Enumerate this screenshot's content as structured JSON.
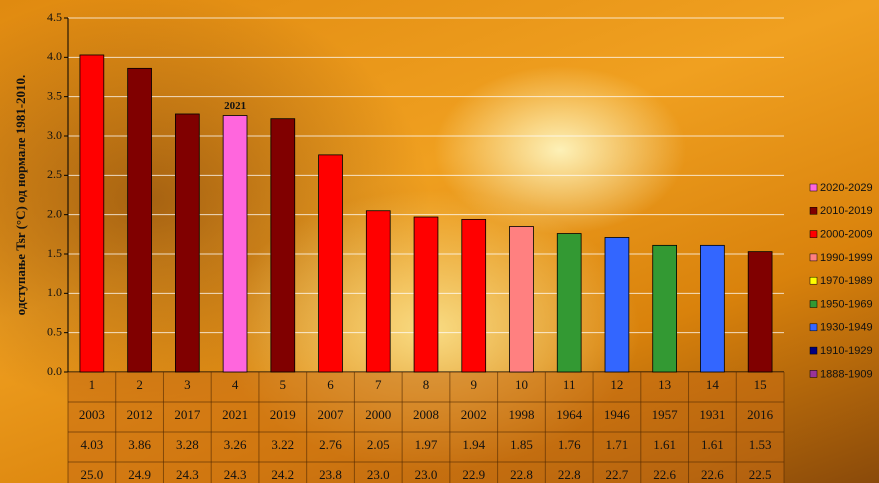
{
  "chart_data": {
    "type": "bar",
    "y_label": "одступање Tsr (°C) од нормале 1981-2010.",
    "categories": [
      "1",
      "2",
      "3",
      "4",
      "5",
      "6",
      "7",
      "8",
      "9",
      "10",
      "11",
      "12",
      "13",
      "14",
      "15"
    ],
    "years": [
      2003,
      2012,
      2017,
      2021,
      2019,
      2007,
      2000,
      2008,
      2002,
      1998,
      1964,
      1946,
      1957,
      1931,
      2016
    ],
    "values": [
      4.03,
      3.86,
      3.28,
      3.26,
      3.22,
      2.76,
      2.05,
      1.97,
      1.94,
      1.85,
      1.76,
      1.71,
      1.61,
      1.61,
      1.53
    ],
    "mean_temperatures": [
      "25.0",
      "24.9",
      "24.3",
      "24.3",
      "24.2",
      "23.8",
      "23.0",
      "23.0",
      "22.9",
      "22.8",
      "22.8",
      "22.7",
      "22.6",
      "22.6",
      "22.5"
    ],
    "colors": [
      "#ff0000",
      "#800000",
      "#800000",
      "#ff66dd",
      "#800000",
      "#ff0000",
      "#ff0000",
      "#ff0000",
      "#ff0000",
      "#ff8080",
      "#339933",
      "#3366ff",
      "#339933",
      "#3366ff",
      "#800000"
    ],
    "highlight_year": 2021,
    "ylim": [
      0,
      4.5
    ],
    "yticks": [
      {
        "value": 0,
        "label": "0.0"
      },
      0.5,
      {
        "value": 1,
        "label": "1.0"
      },
      1.5,
      {
        "value": 2,
        "label": "2.0"
      },
      2.5,
      {
        "value": 3,
        "label": "3.0"
      },
      3.5,
      {
        "value": 4,
        "label": "4.0"
      },
      4.5
    ],
    "grid": true,
    "legend": [
      {
        "name": "2020-2029",
        "color": "#ff66dd"
      },
      {
        "name": "2010-2019",
        "color": "#800000"
      },
      {
        "name": "2000-2009",
        "color": "#ff0000"
      },
      {
        "name": "1990-1999",
        "color": "#ff8080"
      },
      {
        "name": "1970-1989",
        "color": "#ffff00"
      },
      {
        "name": "1950-1969",
        "color": "#339933"
      },
      {
        "name": "1930-1949",
        "color": "#3366ff"
      },
      {
        "name": "1910-1929",
        "color": "#000080"
      },
      {
        "name": "1888-1909",
        "color": "#993399"
      }
    ]
  }
}
